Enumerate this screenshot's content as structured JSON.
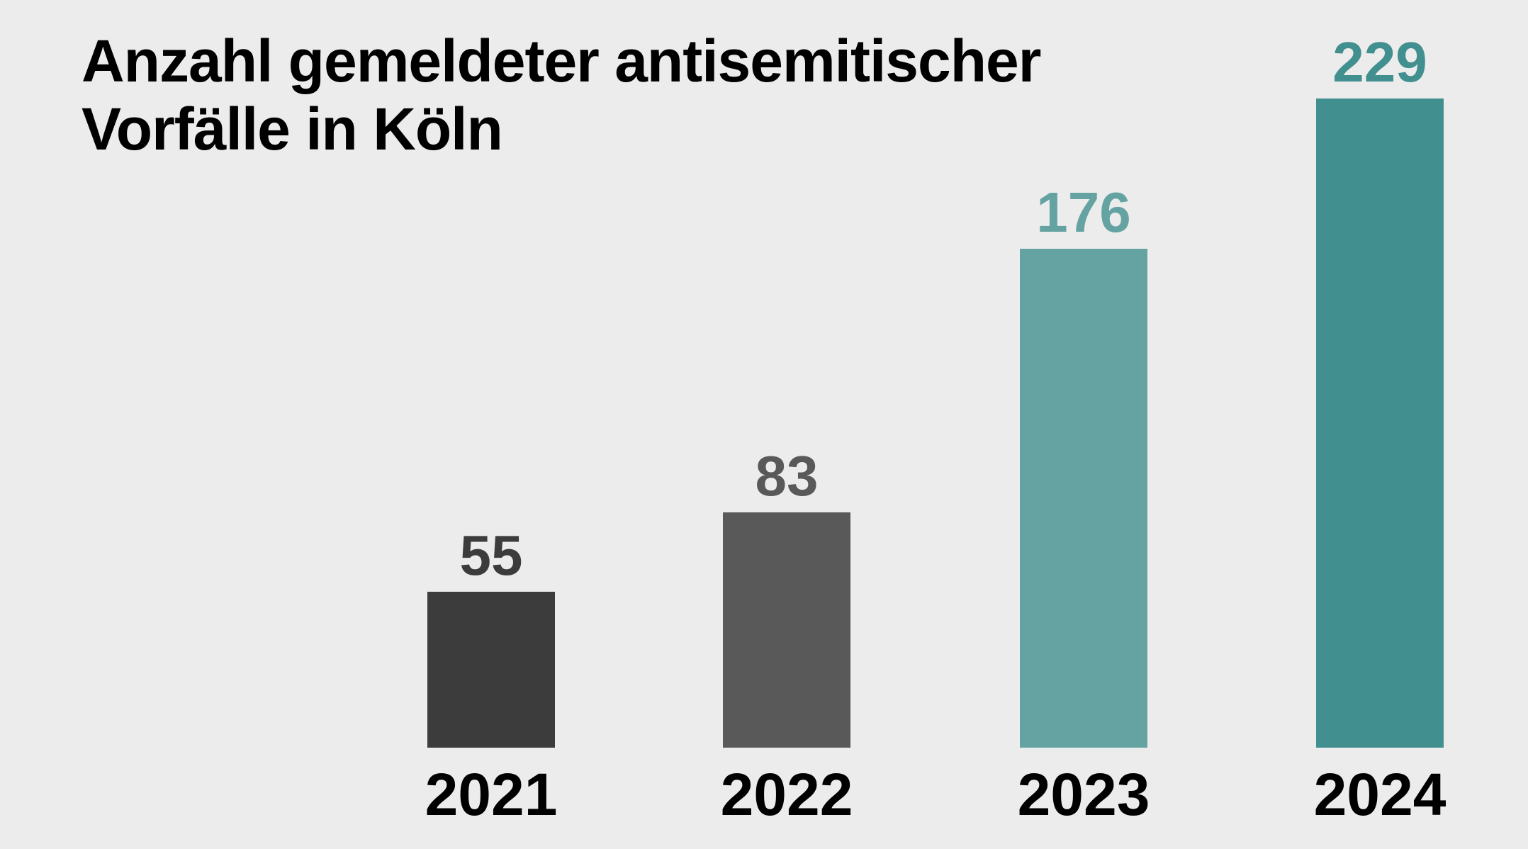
{
  "chart_data": {
    "type": "bar",
    "title": [
      "Anzahl gemeldeter antisemitischer",
      "Vorfälle in Köln"
    ],
    "categories": [
      "2021",
      "2022",
      "2023",
      "2024"
    ],
    "values": [
      55,
      83,
      176,
      229
    ],
    "colors": [
      "#3c3c3c",
      "#595959",
      "#65a3a3",
      "#418f8f"
    ],
    "xlabel": "",
    "ylabel": "",
    "ylim": [
      0,
      229
    ],
    "grid": false,
    "legend": "none",
    "data_labels": true,
    "background": "#ececec"
  }
}
